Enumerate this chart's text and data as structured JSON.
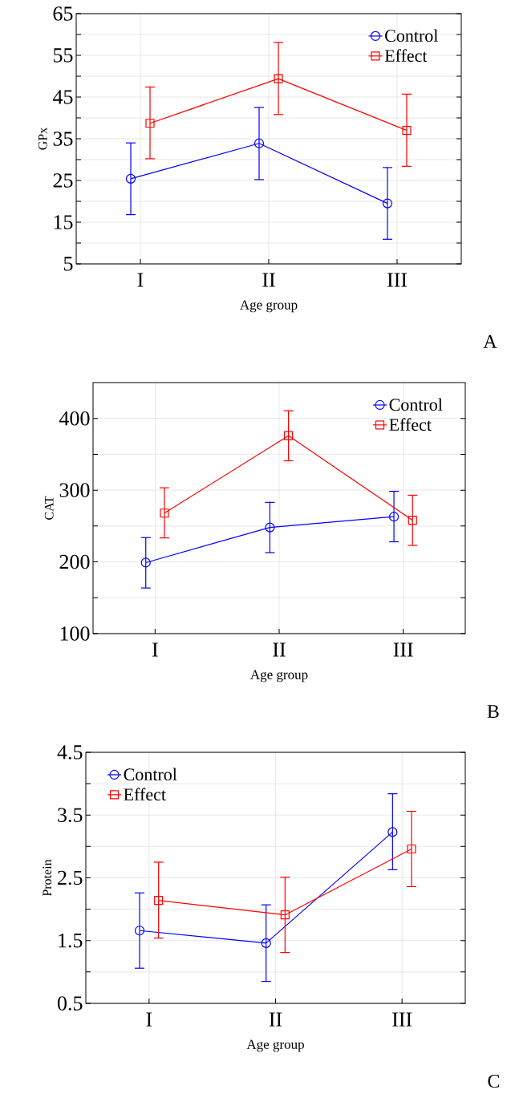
{
  "chart_data": [
    {
      "type": "line",
      "xlabel": "Age group",
      "ylabel": "GPx",
      "categories": [
        "I",
        "II",
        "III"
      ],
      "series": [
        {
          "name": "Control",
          "color": "#0000ff",
          "marker": "circle",
          "values": [
            25.4,
            33.9,
            19.5
          ],
          "errors": [
            [
              16.8,
              34.0
            ],
            [
              25.2,
              42.5
            ],
            [
              10.9,
              28.1
            ]
          ]
        },
        {
          "name": "Effect",
          "color": "#ff0000",
          "marker": "square",
          "values": [
            38.7,
            49.4,
            37.0
          ],
          "errors": [
            [
              30.2,
              47.4
            ],
            [
              40.8,
              58.1
            ],
            [
              28.4,
              45.7
            ]
          ]
        }
      ],
      "ylim": [
        5,
        65
      ],
      "yticks": [
        5,
        {
          "value": 10,
          "label": null
        },
        15,
        {
          "value": 20,
          "label": null
        },
        25,
        {
          "value": 30,
          "label": null
        },
        35,
        {
          "value": 40,
          "label": null
        },
        45,
        {
          "value": 50,
          "label": null
        },
        55,
        {
          "value": 60,
          "label": null
        },
        65
      ],
      "grid": true,
      "legend": "top right",
      "line_style": "solid",
      "annotations": [
        "A"
      ]
    },
    {
      "type": "line",
      "xlabel": "Age group",
      "ylabel": "CAT",
      "categories": [
        "I",
        "II",
        "III"
      ],
      "series": [
        {
          "name": "Control",
          "color": "#0000ff",
          "marker": "circle",
          "values": [
            199,
            248,
            263
          ],
          "errors": [
            [
              163.6,
              233.9
            ],
            [
              212.9,
              283
            ],
            [
              228,
              298.4
            ]
          ]
        },
        {
          "name": "Effect",
          "color": "#ff0000",
          "marker": "square",
          "values": [
            268,
            376,
            258
          ],
          "errors": [
            [
              233.4,
              303.3
            ],
            [
              340.9,
              410.8
            ],
            [
              223,
              293
            ]
          ]
        }
      ],
      "ylim": [
        100,
        450
      ],
      "yticks": [
        100,
        {
          "value": 150,
          "label": null
        },
        200,
        {
          "value": 250,
          "label": null
        },
        300,
        {
          "value": 350,
          "label": null
        },
        400
      ],
      "grid": true,
      "legend": "top right",
      "line_style": "solid",
      "annotations": [
        "B"
      ]
    },
    {
      "type": "line",
      "xlabel": "Age group",
      "ylabel": "Protein",
      "categories": [
        "I",
        "II",
        "III"
      ],
      "series": [
        {
          "name": "Control",
          "color": "#0000ff",
          "marker": "circle",
          "values": [
            1.66,
            1.46,
            3.23
          ],
          "errors": [
            [
              1.06,
              2.26
            ],
            [
              0.85,
              2.07
            ],
            [
              2.63,
              3.84
            ]
          ]
        },
        {
          "name": "Effect",
          "color": "#ff0000",
          "marker": "square",
          "values": [
            2.14,
            1.91,
            2.96
          ],
          "errors": [
            [
              1.54,
              2.75
            ],
            [
              1.31,
              2.51
            ],
            [
              2.36,
              3.56
            ]
          ]
        }
      ],
      "ylim": [
        0.5,
        4.5
      ],
      "yticks": [
        0.5,
        {
          "value": 1.0,
          "label": null
        },
        1.5,
        {
          "value": 2.0,
          "label": null
        },
        2.5,
        {
          "value": 3.0,
          "label": null
        },
        3.5,
        {
          "value": 4.0,
          "label": null
        },
        4.5
      ],
      "grid": true,
      "legend": "top left",
      "line_style": "solid",
      "annotations": [
        "C"
      ]
    }
  ]
}
